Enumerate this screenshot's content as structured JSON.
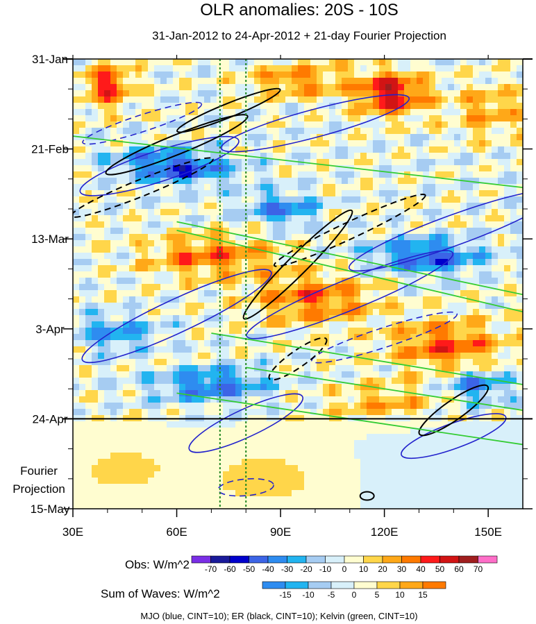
{
  "chart_data": {
    "type": "heatmap",
    "title": "OLR anomalies: 20S - 10S",
    "subtitle": "31-Jan-2012 to 24-Apr-2012 + 21-day Fourier Projection",
    "x_ticks": [
      "30E",
      "60E",
      "90E",
      "120E",
      "150E"
    ],
    "x_tick_values": [
      30,
      60,
      90,
      120,
      150
    ],
    "xlim": [
      30,
      160
    ],
    "y_ticks": [
      "31-Jan",
      "21-Feb",
      "13-Mar",
      "3-Apr",
      "24-Apr",
      "15-May"
    ],
    "y_tick_days": [
      0,
      21,
      42,
      63,
      84,
      105
    ],
    "ylim_days": [
      0,
      105
    ],
    "projection_label": [
      "Fourier",
      "Projection"
    ],
    "projection_start_day": 84,
    "reference_lines_lon": [
      72.5,
      80
    ],
    "obs_colorbar": {
      "label": "Obs: W/m^2",
      "levels": [
        "-70",
        "-60",
        "-50",
        "-40",
        "-30",
        "-20",
        "-10",
        "0",
        "10",
        "20",
        "30",
        "40",
        "50",
        "60",
        "70"
      ],
      "colors": [
        "#7a2ee6",
        "#1a1a9a",
        "#0000cc",
        "#3c64e6",
        "#2e8cf0",
        "#22b4f0",
        "#a6ccf2",
        "#d8f0fa",
        "#fffdd0",
        "#ffd64a",
        "#ffa818",
        "#ff7a00",
        "#ff1a1a",
        "#d21414",
        "#a01e1e",
        "#ff6ec8"
      ]
    },
    "waves_colorbar": {
      "label": "Sum of Waves: W/m^2",
      "levels": [
        "-15",
        "-10",
        "-5",
        "0",
        "5",
        "10",
        "15"
      ],
      "colors": [
        "#2e8cf0",
        "#22b4f0",
        "#a6ccf2",
        "#d8f0fa",
        "#fffdd0",
        "#ffd64a",
        "#ffa818",
        "#ff7a00"
      ]
    },
    "footnote": "MJO (blue, CINT=10); ER (black, CINT=10); Kelvin (green, CINT=10)",
    "contour_colors": {
      "mjo": "#2222cc",
      "er": "#000000",
      "kelvin": "#33cc33"
    },
    "ref_line_color": "#228822",
    "grid": false
  }
}
